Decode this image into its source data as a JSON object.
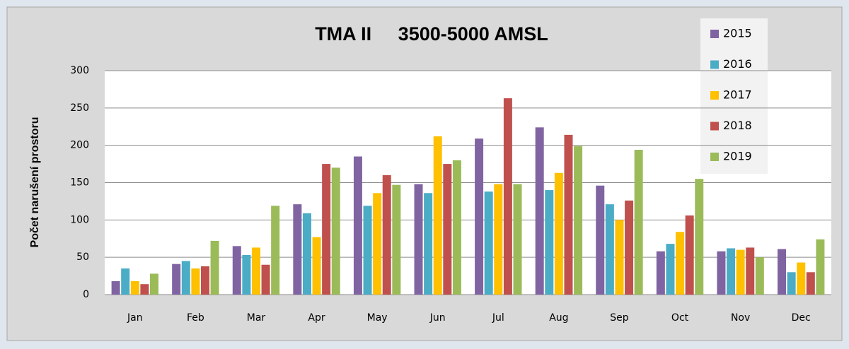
{
  "chart_data": {
    "type": "bar",
    "title": "TMA II     3500-5000 AMSL",
    "y_label": "Počet narušení prostoru",
    "categories": [
      "Jan",
      "Feb",
      "Mar",
      "Apr",
      "May",
      "Jun",
      "Jul",
      "Aug",
      "Sep",
      "Oct",
      "Nov",
      "Dec"
    ],
    "series": [
      {
        "name": "2015",
        "color": "#8064a2",
        "values": [
          18,
          41,
          65,
          121,
          185,
          148,
          209,
          224,
          146,
          58,
          58,
          61
        ]
      },
      {
        "name": "2016",
        "color": "#4bacc6",
        "values": [
          35,
          45,
          53,
          109,
          119,
          136,
          138,
          140,
          121,
          68,
          62,
          30
        ]
      },
      {
        "name": "2017",
        "color": "#ffc000",
        "values": [
          18,
          35,
          63,
          77,
          136,
          212,
          148,
          163,
          100,
          84,
          60,
          43
        ]
      },
      {
        "name": "2018",
        "color": "#c0504d",
        "values": [
          14,
          38,
          40,
          175,
          160,
          175,
          263,
          214,
          126,
          106,
          63,
          30
        ]
      },
      {
        "name": "2019",
        "color": "#9bbb59",
        "values": [
          28,
          72,
          119,
          170,
          147,
          180,
          148,
          199,
          194,
          155,
          50,
          74
        ]
      }
    ],
    "ylim": [
      0,
      300
    ],
    "yticks": [
      0,
      50,
      100,
      150,
      200,
      250,
      300
    ],
    "grid": true,
    "legend": "top-right"
  }
}
